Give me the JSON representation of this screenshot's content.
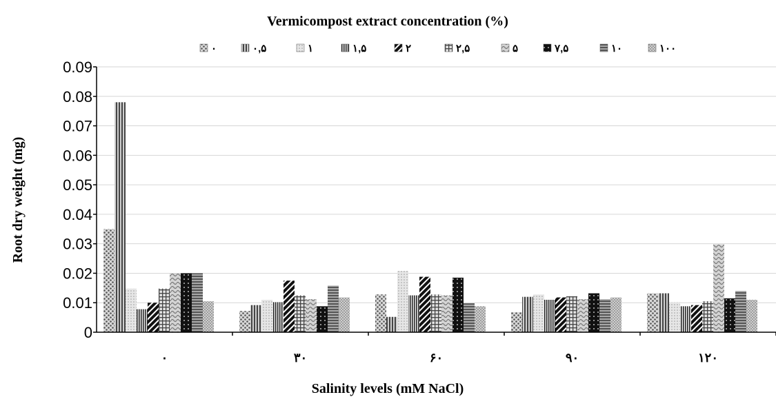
{
  "chart_data": {
    "type": "bar",
    "title": "Vermicompost extract concentration (%)",
    "xlabel": "Salinity levels (mM NaCl)",
    "ylabel": "Root dry weight (mg)",
    "ylim": [
      0,
      0.09
    ],
    "yticks": [
      "0",
      "0.01",
      "0.02",
      "0.03",
      "0.04",
      "0.05",
      "0.06",
      "0.07",
      "0.08",
      "0.09"
    ],
    "grid": true,
    "legend_position": "top",
    "categories": [
      "٠",
      "٣٠",
      "۶٠",
      "٩٠",
      "١٢٠"
    ],
    "series": [
      {
        "name": "٠",
        "pattern": "dots",
        "color": "#9a9a9a",
        "values": [
          0.035,
          0.0072,
          0.0128,
          0.0068,
          0.0132
        ]
      },
      {
        "name": "٠,۵",
        "pattern": "vlines",
        "color": "#8a8a8a",
        "values": [
          0.078,
          0.0092,
          0.0052,
          0.012,
          0.0132
        ]
      },
      {
        "name": "١",
        "pattern": "light-dots",
        "color": "#cfcfcf",
        "values": [
          0.0148,
          0.011,
          0.0208,
          0.0128,
          0.0102
        ]
      },
      {
        "name": "١,۵",
        "pattern": "dense-vlines",
        "color": "#606060",
        "values": [
          0.0078,
          0.0102,
          0.0125,
          0.011,
          0.0088
        ]
      },
      {
        "name": "٢",
        "pattern": "diagonal",
        "color": "#2a2a2a",
        "values": [
          0.01,
          0.0175,
          0.0188,
          0.0118,
          0.0092
        ]
      },
      {
        "name": "٢,۵",
        "pattern": "grid",
        "color": "#8a8a8a",
        "values": [
          0.0148,
          0.0125,
          0.0128,
          0.0122,
          0.0105
        ]
      },
      {
        "name": "۵",
        "pattern": "waves",
        "color": "#bdbdbd",
        "values": [
          0.02,
          0.0112,
          0.0125,
          0.0112,
          0.0298
        ]
      },
      {
        "name": "٧,۵",
        "pattern": "black-dots",
        "color": "#1e1e1e",
        "values": [
          0.02,
          0.0088,
          0.0185,
          0.0132,
          0.0115
        ]
      },
      {
        "name": "١٠",
        "pattern": "hlines",
        "color": "#7a7a7a",
        "values": [
          0.02,
          0.0158,
          0.0098,
          0.0112,
          0.014
        ]
      },
      {
        "name": "١٠٠",
        "pattern": "fine-dots",
        "color": "#b8b8b8",
        "values": [
          0.0105,
          0.0118,
          0.0088,
          0.0118,
          0.011
        ]
      }
    ]
  }
}
